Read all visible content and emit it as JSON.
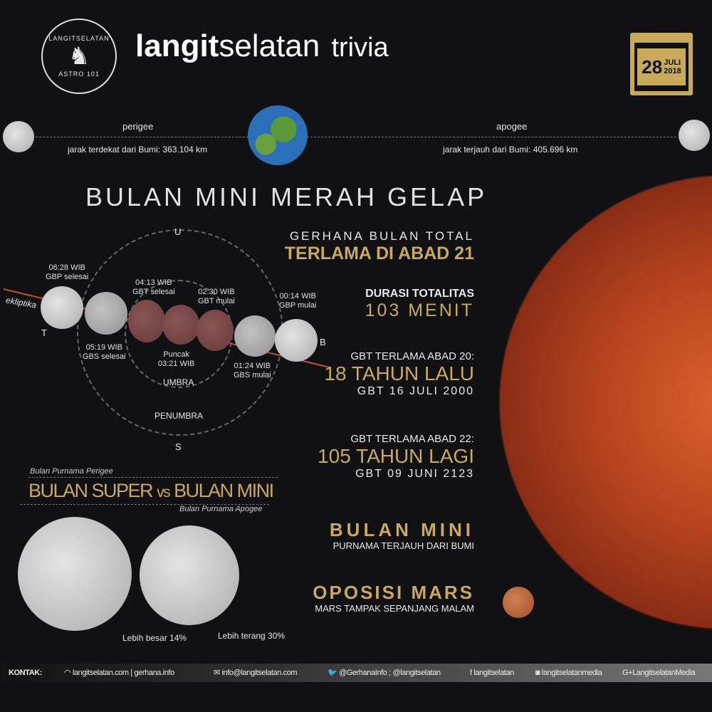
{
  "header": {
    "logo_text": "LANGITSELATAN",
    "logo_sub": "ASTRO 101",
    "title_bold": "langit",
    "title_light": "selatan",
    "title_suffix": "trivia",
    "date_day": "28",
    "date_month": "JULI",
    "date_year": "2018"
  },
  "distance": {
    "perigee_label": "perigee",
    "perigee_text": "jarak terdekat dari Bumi: 363.104 km",
    "apogee_label": "apogee",
    "apogee_text": "jarak terjauh dari Bumi: 405.696 km"
  },
  "main_title": "BULAN MINI MERAH GELAP",
  "diagram": {
    "north": "U",
    "south": "S",
    "east": "T",
    "west": "B",
    "ecliptic": "ekliptika",
    "umbra": "UMBRA",
    "penumbra": "PENUMBRA",
    "events": [
      {
        "time": "06:28 WIB",
        "name": "GBP selesai"
      },
      {
        "time": "05:19 WIB",
        "name": "GBS selesai"
      },
      {
        "time": "04:13 WIB",
        "name": "GBT selesai"
      },
      {
        "time": "03:21 WIB",
        "name": "Puncak"
      },
      {
        "time": "02:30 WIB",
        "name": "GBT mulai"
      },
      {
        "time": "01:24 WIB",
        "name": "GBS mulai"
      },
      {
        "time": "00:14 WIB",
        "name": "GBP mulai"
      }
    ]
  },
  "compare": {
    "top_caption": "Bulan Purnama Perigee",
    "title_a": "BULAN SUPER",
    "vs": "vs",
    "title_b": "BULAN MINI",
    "bottom_caption": "Bulan Purnama Apogee",
    "bigger": "Lebih besar 14%",
    "brighter": "Lebih terang 30%"
  },
  "facts": {
    "f1_top": "GERHANA BULAN TOTAL",
    "f1_main": "TERLAMA DI ABAD 21",
    "f2_top": "DURASI TOTALITAS",
    "f2_main": "103 MENIT",
    "f3_top": "GBT TERLAMA ABAD 20:",
    "f3_main": "18 TAHUN LALU",
    "f3_sub": "GBT 16 JULI 2000",
    "f4_top": "GBT TERLAMA ABAD 22:",
    "f4_main": "105 TAHUN LAGI",
    "f4_sub": "GBT 09 JUNI 2123",
    "f5_main": "BULAN MINI",
    "f5_sub": "PURNAMA TERJAUH DARI BUMI",
    "f6_main": "OPOSISI MARS",
    "f6_sub": "MARS TAMPAK SEPANJANG MALAM"
  },
  "footer": {
    "label": "KONTAK:",
    "web": "langitselatan.com | gerhana.info",
    "email": "info@langitselatan.com",
    "twitter": "@GerhanaInfo ; @langitselatan",
    "facebook": "langitselatan",
    "instagram": "langitselatanmedia",
    "gplus": "LangitselatanMedia"
  },
  "colors": {
    "gold": "#c9a95a",
    "background": "#111113",
    "blood_moon": "#6e3f40",
    "mars": "#c0502a"
  }
}
